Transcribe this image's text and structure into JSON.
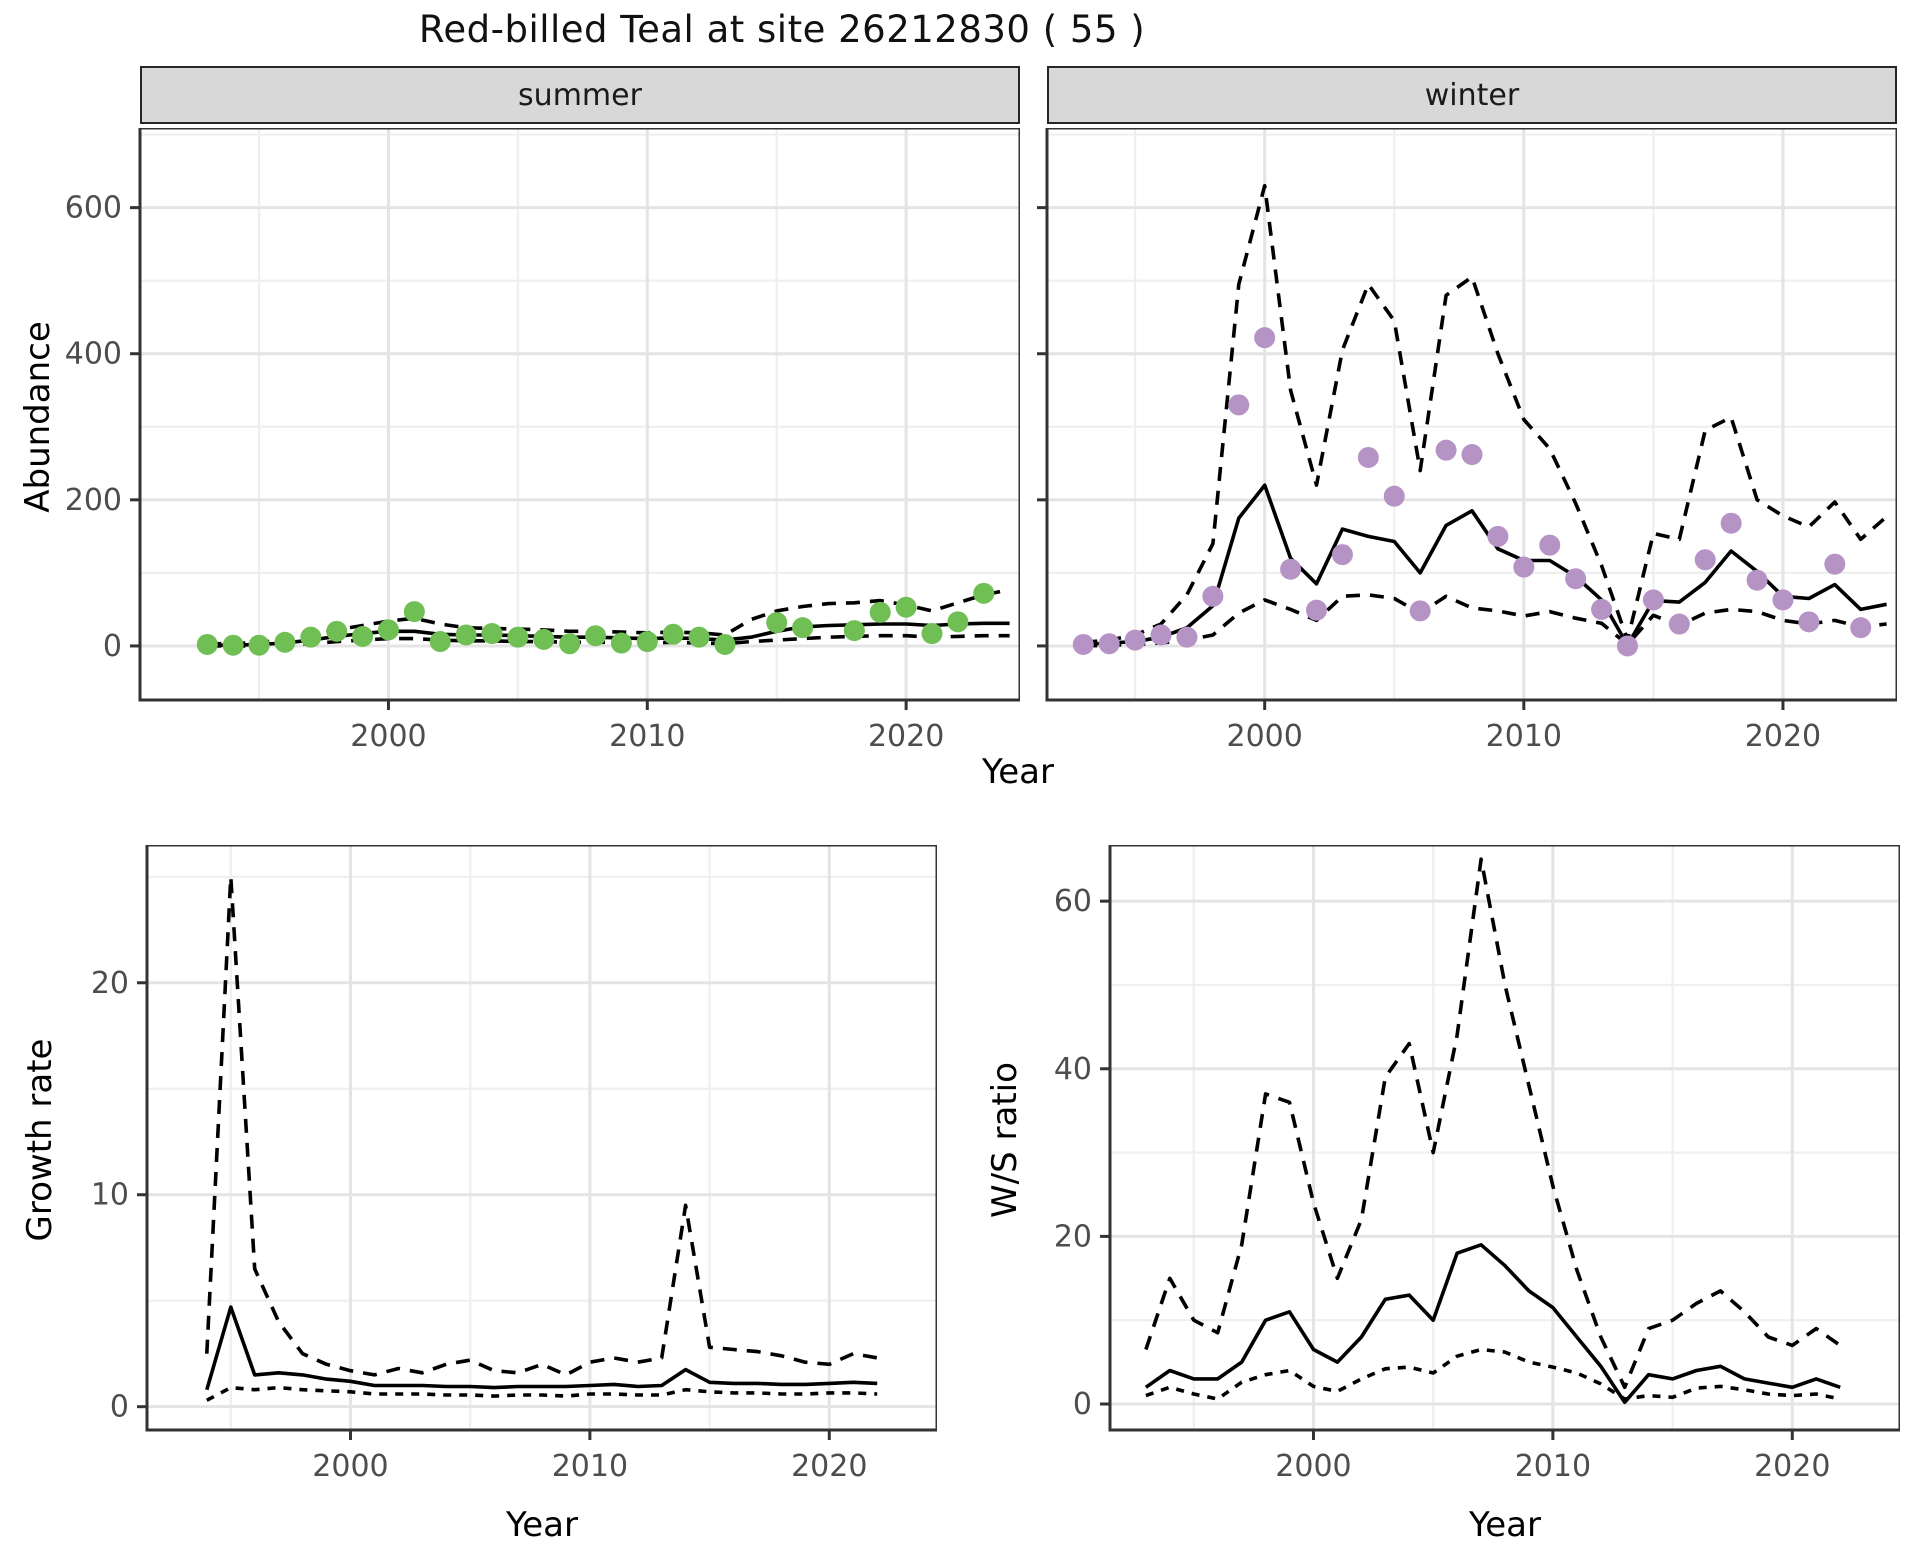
{
  "title": "Red-billed Teal at site 26212830 ( 55 )",
  "facets": {
    "summer": "summer",
    "winter": "winter"
  },
  "axis_titles": {
    "abundance": "Abundance",
    "year_top": "Year",
    "growth_rate": "Growth rate",
    "ws_ratio": "W/S ratio",
    "year_growth": "Year",
    "year_ws": "Year"
  },
  "colors": {
    "summer_points": "#6FBF54",
    "winter_points": "#B593C5",
    "fit_line": "#000000",
    "ci_line": "#000000",
    "strip_fill": "#d8d8d8",
    "grid_major": "#e4e4e4",
    "grid_minor": "#efefef",
    "axis_text": "#4d4d4d",
    "panel_border": "#333333"
  },
  "chart_data": [
    {
      "key": "summer",
      "type": "line",
      "title": "summer",
      "ylabel": "Abundance",
      "xlabel": "Year",
      "xlim": [
        1990.4,
        2024.4
      ],
      "ylim": [
        -74,
        709
      ],
      "x_major": [
        2000,
        2010,
        2020
      ],
      "x_minor": [
        1995,
        2005,
        2015
      ],
      "y_major": [
        0,
        200,
        400,
        600
      ],
      "y_minor": [
        100,
        300,
        500,
        700
      ],
      "point_color": "#6FBF54",
      "series": [
        {
          "name": "lower_ci",
          "style": "dashed",
          "dash": "14 10",
          "x": [
            1993,
            1994,
            1995,
            1996,
            1997,
            1998,
            1999,
            2000,
            2001,
            2002,
            2003,
            2004,
            2005,
            2006,
            2007,
            2008,
            2009,
            2010,
            2011,
            2012,
            2013,
            2014,
            2015,
            2016,
            2017,
            2018,
            2019,
            2020,
            2021,
            2022,
            2023,
            2024
          ],
          "y": [
            0,
            0,
            0,
            1,
            3,
            6,
            8,
            10,
            10,
            8,
            7,
            7,
            6,
            6,
            5,
            5,
            5,
            4,
            5,
            4,
            3,
            6,
            8,
            10,
            12,
            13,
            14,
            14,
            12,
            13,
            14,
            14
          ]
        },
        {
          "name": "upper_ci",
          "style": "dashed",
          "dash": "14 10",
          "x": [
            1993,
            1994,
            1995,
            1996,
            1997,
            1998,
            1999,
            2000,
            2001,
            2002,
            2003,
            2004,
            2005,
            2006,
            2007,
            2008,
            2009,
            2010,
            2011,
            2012,
            2013,
            2014,
            2015,
            2016,
            2017,
            2018,
            2019,
            2020,
            2021,
            2022,
            2023,
            2024
          ],
          "y": [
            3,
            3,
            5,
            8,
            14,
            22,
            28,
            34,
            38,
            30,
            25,
            24,
            23,
            22,
            20,
            20,
            19,
            18,
            19,
            18,
            15,
            36,
            48,
            54,
            58,
            59,
            62,
            56,
            48,
            59,
            70,
            77
          ]
        },
        {
          "name": "fit",
          "style": "solid",
          "x": [
            1993,
            1994,
            1995,
            1996,
            1997,
            1998,
            1999,
            2000,
            2001,
            2002,
            2003,
            2004,
            2005,
            2006,
            2007,
            2008,
            2009,
            2010,
            2011,
            2012,
            2013,
            2014,
            2015,
            2016,
            2017,
            2018,
            2019,
            2020,
            2021,
            2022,
            2023,
            2024
          ],
          "y": [
            1,
            1,
            2,
            4,
            8,
            13,
            17,
            20,
            20,
            16,
            15,
            15,
            14,
            13,
            12,
            12,
            11,
            10,
            11,
            10,
            8,
            12,
            20,
            26,
            28,
            29,
            30,
            30,
            28,
            30,
            31,
            31
          ]
        },
        {
          "name": "observed",
          "style": "points",
          "x": [
            1993,
            1994,
            1995,
            1996,
            1997,
            1998,
            1999,
            2000,
            2001,
            2002,
            2003,
            2004,
            2005,
            2006,
            2007,
            2008,
            2009,
            2010,
            2011,
            2012,
            2013,
            2015,
            2016,
            2018,
            2019,
            2020,
            2021,
            2022,
            2023
          ],
          "y": [
            2,
            1,
            1,
            5,
            12,
            20,
            13,
            22,
            47,
            6,
            15,
            17,
            12,
            9,
            3,
            14,
            4,
            6,
            16,
            12,
            2,
            32,
            25,
            21,
            46,
            53,
            17,
            33,
            72
          ]
        }
      ]
    },
    {
      "key": "winter",
      "type": "line",
      "title": "winter",
      "ylabel": "Abundance",
      "xlabel": "Year",
      "xlim": [
        1991.6,
        2024.4
      ],
      "ylim": [
        -74,
        709
      ],
      "x_major": [
        2000,
        2010,
        2020
      ],
      "x_minor": [
        1995,
        2005,
        2015
      ],
      "y_major": [
        0,
        200,
        400,
        600
      ],
      "y_minor": [
        100,
        300,
        500,
        700
      ],
      "point_color": "#B593C5",
      "series": [
        {
          "name": "lower_ci",
          "style": "dashed",
          "dash": "14 10",
          "x": [
            1993,
            1994,
            1995,
            1996,
            1997,
            1998,
            1999,
            2000,
            2001,
            2002,
            2003,
            2004,
            2005,
            2006,
            2007,
            2008,
            2009,
            2010,
            2011,
            2012,
            2013,
            2014,
            2015,
            2016,
            2017,
            2018,
            2019,
            2020,
            2021,
            2022,
            2023,
            2024
          ],
          "y": [
            0,
            1,
            2,
            4,
            8,
            15,
            45,
            63,
            50,
            35,
            68,
            70,
            65,
            45,
            68,
            52,
            48,
            41,
            47,
            38,
            31,
            2,
            42,
            28,
            45,
            50,
            47,
            35,
            30,
            35,
            26,
            30
          ]
        },
        {
          "name": "upper_ci",
          "style": "dashed",
          "dash": "14 10",
          "x": [
            1993,
            1994,
            1995,
            1996,
            1997,
            1998,
            1999,
            2000,
            2001,
            2002,
            2003,
            2004,
            2005,
            2006,
            2007,
            2008,
            2009,
            2010,
            2011,
            2012,
            2013,
            2014,
            2015,
            2016,
            2017,
            2018,
            2019,
            2020,
            2021,
            2022,
            2023,
            2024
          ],
          "y": [
            5,
            8,
            15,
            30,
            70,
            140,
            495,
            630,
            350,
            220,
            405,
            495,
            445,
            240,
            480,
            505,
            400,
            310,
            270,
            195,
            110,
            8,
            154,
            146,
            295,
            313,
            200,
            178,
            163,
            197,
            146,
            177
          ]
        },
        {
          "name": "fit",
          "style": "solid",
          "x": [
            1993,
            1994,
            1995,
            1996,
            1997,
            1998,
            1999,
            2000,
            2001,
            2002,
            2003,
            2004,
            2005,
            2006,
            2007,
            2008,
            2009,
            2010,
            2011,
            2012,
            2013,
            2014,
            2015,
            2016,
            2017,
            2018,
            2019,
            2020,
            2021,
            2022,
            2023,
            2024
          ],
          "y": [
            2,
            4,
            6,
            12,
            25,
            55,
            175,
            220,
            120,
            85,
            160,
            150,
            143,
            100,
            165,
            185,
            133,
            117,
            117,
            95,
            63,
            1,
            62,
            60,
            87,
            130,
            102,
            68,
            65,
            84,
            50,
            57
          ]
        },
        {
          "name": "observed",
          "style": "points",
          "x": [
            1993,
            1994,
            1995,
            1996,
            1997,
            1998,
            1999,
            2000,
            2001,
            2002,
            2003,
            2004,
            2005,
            2006,
            2007,
            2008,
            2009,
            2010,
            2011,
            2012,
            2013,
            2014,
            2015,
            2016,
            2017,
            2018,
            2019,
            2020,
            2021,
            2022,
            2023
          ],
          "y": [
            2,
            3,
            8,
            15,
            12,
            68,
            330,
            422,
            105,
            49,
            125,
            258,
            205,
            48,
            268,
            262,
            150,
            108,
            138,
            92,
            50,
            0,
            63,
            30,
            118,
            168,
            90,
            63,
            33,
            112,
            25
          ]
        }
      ]
    },
    {
      "key": "growth",
      "type": "line",
      "title": "Growth rate",
      "ylabel": "Growth rate",
      "xlabel": "Year",
      "xlim": [
        1991.5,
        2024.5
      ],
      "ylim": [
        -1.1,
        26.5
      ],
      "x_major": [
        2000,
        2010,
        2020
      ],
      "x_minor": [
        1995,
        2005,
        2015
      ],
      "y_major": [
        0,
        10,
        20
      ],
      "y_minor": [
        5,
        15,
        25
      ],
      "series": [
        {
          "name": "lower_ci",
          "style": "dashed",
          "dash": "8 8",
          "x": [
            1994,
            1995,
            1996,
            1997,
            1998,
            1999,
            2000,
            2001,
            2002,
            2003,
            2004,
            2005,
            2006,
            2007,
            2008,
            2009,
            2010,
            2011,
            2012,
            2013,
            2014,
            2015,
            2016,
            2017,
            2018,
            2019,
            2020,
            2021,
            2022
          ],
          "y": [
            0.3,
            0.9,
            0.8,
            0.9,
            0.8,
            0.75,
            0.7,
            0.6,
            0.6,
            0.6,
            0.55,
            0.55,
            0.5,
            0.55,
            0.55,
            0.5,
            0.6,
            0.6,
            0.55,
            0.55,
            0.8,
            0.7,
            0.65,
            0.65,
            0.6,
            0.6,
            0.65,
            0.65,
            0.6
          ]
        },
        {
          "name": "upper_ci",
          "style": "dashed",
          "dash": "14 10",
          "x": [
            1994,
            1995,
            1996,
            1997,
            1998,
            1999,
            2000,
            2001,
            2002,
            2003,
            2004,
            2005,
            2006,
            2007,
            2008,
            2009,
            2010,
            2011,
            2012,
            2013,
            2014,
            2015,
            2016,
            2017,
            2018,
            2019,
            2020,
            2021,
            2022
          ],
          "y": [
            2.5,
            25,
            6.5,
            4.0,
            2.5,
            2.0,
            1.7,
            1.5,
            1.8,
            1.6,
            2.0,
            2.2,
            1.7,
            1.6,
            2.0,
            1.5,
            2.1,
            2.3,
            2.1,
            2.3,
            9.5,
            2.8,
            2.7,
            2.6,
            2.4,
            2.1,
            2.0,
            2.5,
            2.3
          ]
        },
        {
          "name": "fit",
          "style": "solid",
          "x": [
            1994,
            1995,
            1996,
            1997,
            1998,
            1999,
            2000,
            2001,
            2002,
            2003,
            2004,
            2005,
            2006,
            2007,
            2008,
            2009,
            2010,
            2011,
            2012,
            2013,
            2014,
            2015,
            2016,
            2017,
            2018,
            2019,
            2020,
            2021,
            2022
          ],
          "y": [
            0.8,
            4.7,
            1.5,
            1.6,
            1.5,
            1.3,
            1.2,
            1.0,
            1.0,
            1.0,
            0.95,
            0.95,
            0.9,
            0.95,
            0.95,
            0.95,
            1.0,
            1.05,
            0.95,
            1.0,
            1.75,
            1.15,
            1.1,
            1.1,
            1.05,
            1.05,
            1.1,
            1.15,
            1.1
          ]
        }
      ]
    },
    {
      "key": "ws",
      "type": "line",
      "title": "W/S ratio",
      "ylabel": "W/S ratio",
      "xlabel": "Year",
      "xlim": [
        1991.5,
        2024.5
      ],
      "ylim": [
        -3.1,
        66.7
      ],
      "x_major": [
        2000,
        2010,
        2020
      ],
      "x_minor": [
        1995,
        2005,
        2015
      ],
      "y_major": [
        0,
        20,
        40,
        60
      ],
      "y_minor": [
        10,
        30,
        50
      ],
      "series": [
        {
          "name": "lower_ci",
          "style": "dashed",
          "dash": "8 8",
          "x": [
            1993,
            1994,
            1995,
            1996,
            1997,
            1998,
            1999,
            2000,
            2001,
            2002,
            2003,
            2004,
            2005,
            2006,
            2007,
            2008,
            2009,
            2010,
            2011,
            2012,
            2013,
            2014,
            2015,
            2016,
            2017,
            2018,
            2019,
            2020,
            2021,
            2022
          ],
          "y": [
            1,
            2,
            1.2,
            0.6,
            2.6,
            3.5,
            4,
            2.1,
            1.5,
            3,
            4.2,
            4.4,
            3.7,
            5.7,
            6.5,
            6.2,
            5,
            4.4,
            3.7,
            2.4,
            0.6,
            1,
            0.8,
            1.9,
            2.1,
            1.7,
            1.2,
            1,
            1.2,
            0.6
          ]
        },
        {
          "name": "upper_ci",
          "style": "dashed",
          "dash": "14 10",
          "x": [
            1993,
            1994,
            1995,
            1996,
            1997,
            1998,
            1999,
            2000,
            2001,
            2002,
            2003,
            2004,
            2005,
            2006,
            2007,
            2008,
            2009,
            2010,
            2011,
            2012,
            2013,
            2014,
            2015,
            2016,
            2017,
            2018,
            2019,
            2020,
            2021,
            2022
          ],
          "y": [
            6.5,
            15,
            10,
            8.5,
            19,
            37,
            36,
            24,
            15,
            22,
            39,
            43,
            30,
            44,
            65,
            50,
            38,
            26,
            16,
            8,
            2,
            9,
            10,
            12,
            13.5,
            11,
            8,
            7,
            9,
            7
          ]
        },
        {
          "name": "fit",
          "style": "solid",
          "x": [
            1993,
            1994,
            1995,
            1996,
            1997,
            1998,
            1999,
            2000,
            2001,
            2002,
            2003,
            2004,
            2005,
            2006,
            2007,
            2008,
            2009,
            2010,
            2011,
            2012,
            2013,
            2014,
            2015,
            2016,
            2017,
            2018,
            2019,
            2020,
            2021,
            2022
          ],
          "y": [
            2,
            4,
            3,
            3,
            5,
            10,
            11,
            6.5,
            5,
            8,
            12.5,
            13,
            10,
            18,
            19,
            16.5,
            13.5,
            11.5,
            8,
            4.5,
            0.2,
            3.5,
            3,
            4,
            4.5,
            3,
            2.5,
            2,
            3,
            2
          ]
        }
      ]
    }
  ]
}
